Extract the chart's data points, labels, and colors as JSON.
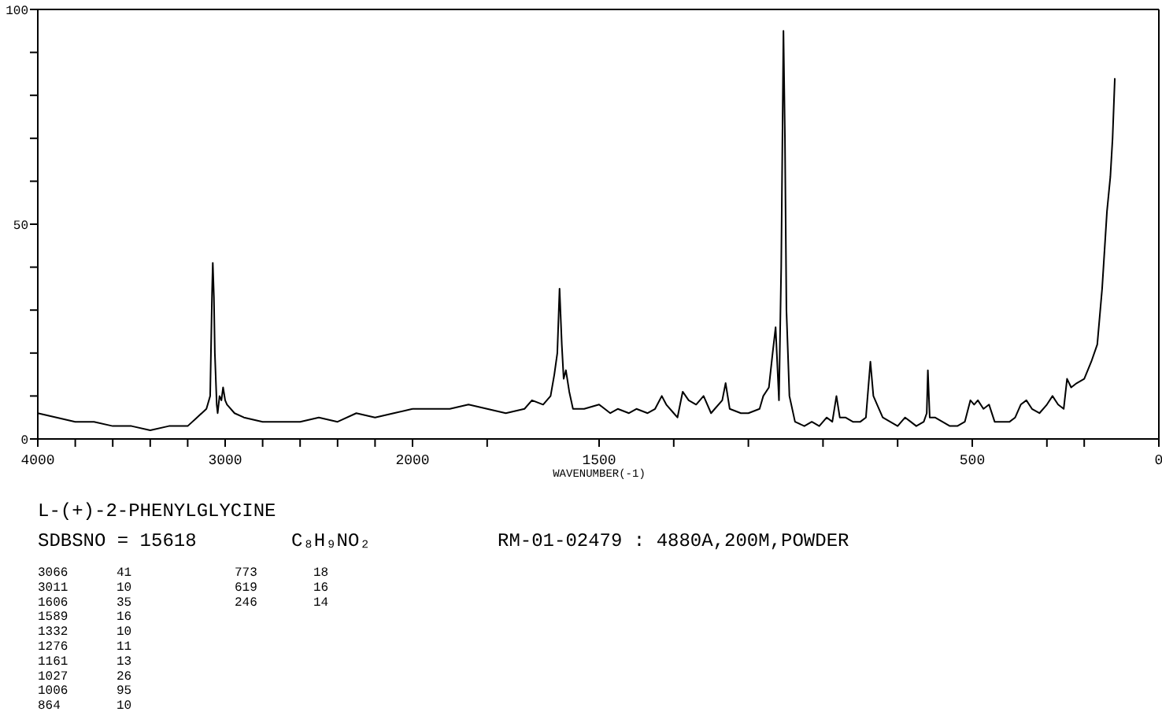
{
  "chart_data": [
    {
      "type": "line",
      "title": "L-(+)-2-PHENYLGLYCINE",
      "annotations": [
        "SDBSNO = 15618",
        "C₈H₉NO₂",
        "RM-01-02479 : 4880A,200M,POWDER",
        "3066 41",
        "3011 10",
        "1606 35",
        "1589 16",
        "1332 10",
        "1276 11",
        "1161 13",
        "1027 26",
        "1006 95",
        "864 10",
        "773 18",
        "619 16",
        "246 14"
      ],
      "xlim": [
        4000,
        2000
      ],
      "ylim": [
        0,
        100
      ],
      "xticks": [
        4000,
        {
          "value": 3800,
          "label": null
        },
        {
          "value": 3600,
          "label": null
        },
        {
          "value": 3400,
          "label": null
        },
        {
          "value": 3200,
          "label": null
        },
        3000,
        {
          "value": 2800,
          "label": null
        },
        {
          "value": 2600,
          "label": null
        },
        {
          "value": 2400,
          "label": null
        },
        {
          "value": 2200,
          "label": null
        }
      ],
      "yticks": [
        0,
        {
          "value": 10,
          "label": null
        },
        {
          "value": 20,
          "label": null
        },
        {
          "value": 30,
          "label": null
        },
        {
          "value": 40,
          "label": null
        },
        50,
        {
          "value": 60,
          "label": null
        },
        {
          "value": 70,
          "label": null
        },
        {
          "value": 80,
          "label": null
        },
        {
          "value": 90,
          "label": null
        },
        100
      ],
      "grid": false,
      "series": [
        {
          "color": "#000000",
          "x": [
            4000,
            3900,
            3800,
            3700,
            3600,
            3500,
            3400,
            3300,
            3200,
            3150,
            3100,
            3080,
            3070,
            3066,
            3060,
            3055,
            3045,
            3040,
            3030,
            3020,
            3011,
            3000,
            2990,
            2950,
            2900,
            2800,
            2700,
            2600,
            2500,
            2400,
            2300,
            2200,
            2100,
            2000
          ],
          "values": [
            6,
            5,
            4,
            4,
            3,
            3,
            2,
            3,
            3,
            5,
            7,
            10,
            34,
            41,
            33,
            20,
            8,
            6,
            10,
            9,
            12,
            9,
            8,
            6,
            5,
            4,
            4,
            4,
            5,
            4,
            6,
            5,
            6,
            7
          ]
        }
      ]
    },
    {
      "type": "line",
      "xlabel": "WAVENUMBER(-1)",
      "tick_labels": "x",
      "xlim": [
        2000,
        0
      ],
      "ylim": [
        0,
        100
      ],
      "xticks": [
        2000,
        {
          "value": 1800,
          "label": null
        },
        1500,
        {
          "value": 1300,
          "label": null
        },
        {
          "value": 1100,
          "label": null
        },
        {
          "value": 900,
          "label": null
        },
        {
          "value": 700,
          "label": null
        },
        500,
        {
          "value": 300,
          "label": null
        },
        {
          "value": 200,
          "label": null
        },
        0
      ],
      "grid": false,
      "series": [
        {
          "color": "#000000",
          "x": [
            2000,
            1950,
            1900,
            1850,
            1800,
            1750,
            1700,
            1680,
            1650,
            1630,
            1620,
            1612,
            1606,
            1600,
            1595,
            1589,
            1580,
            1570,
            1540,
            1500,
            1470,
            1450,
            1420,
            1400,
            1370,
            1350,
            1332,
            1320,
            1300,
            1290,
            1276,
            1260,
            1240,
            1220,
            1200,
            1190,
            1170,
            1161,
            1150,
            1120,
            1100,
            1070,
            1060,
            1045,
            1035,
            1027,
            1018,
            1012,
            1006,
            1002,
            998,
            990,
            975,
            950,
            930,
            910,
            890,
            875,
            864,
            855,
            840,
            820,
            800,
            785,
            773,
            765,
            755,
            740,
            720,
            700,
            680,
            665,
            650,
            630,
            622,
            619,
            614,
            600,
            580,
            560,
            540,
            520,
            505,
            495,
            485,
            470,
            455,
            440,
            420,
            400,
            385,
            370,
            355,
            340,
            320,
            300,
            285,
            270,
            255,
            246,
            235,
            220,
            200,
            181,
            165,
            152,
            139,
            130,
            124,
            118
          ],
          "values": [
            7,
            7,
            7,
            8,
            7,
            6,
            7,
            9,
            8,
            10,
            15,
            20,
            35,
            22,
            14,
            16,
            11,
            7,
            7,
            8,
            6,
            7,
            6,
            7,
            6,
            7,
            10,
            8,
            6,
            5,
            11,
            9,
            8,
            10,
            6,
            7,
            9,
            13,
            7,
            6,
            6,
            7,
            10,
            12,
            20,
            26,
            9,
            40,
            95,
            70,
            30,
            10,
            4,
            3,
            4,
            3,
            5,
            4,
            10,
            5,
            5,
            4,
            4,
            5,
            18,
            10,
            8,
            5,
            4,
            3,
            5,
            4,
            3,
            4,
            6,
            16,
            5,
            5,
            4,
            3,
            3,
            4,
            9,
            8,
            9,
            7,
            8,
            4,
            4,
            4,
            5,
            8,
            9,
            7,
            6,
            8,
            10,
            8,
            7,
            14,
            12,
            13,
            14,
            18,
            22,
            35,
            53,
            61,
            70,
            84
          ]
        }
      ]
    }
  ]
}
